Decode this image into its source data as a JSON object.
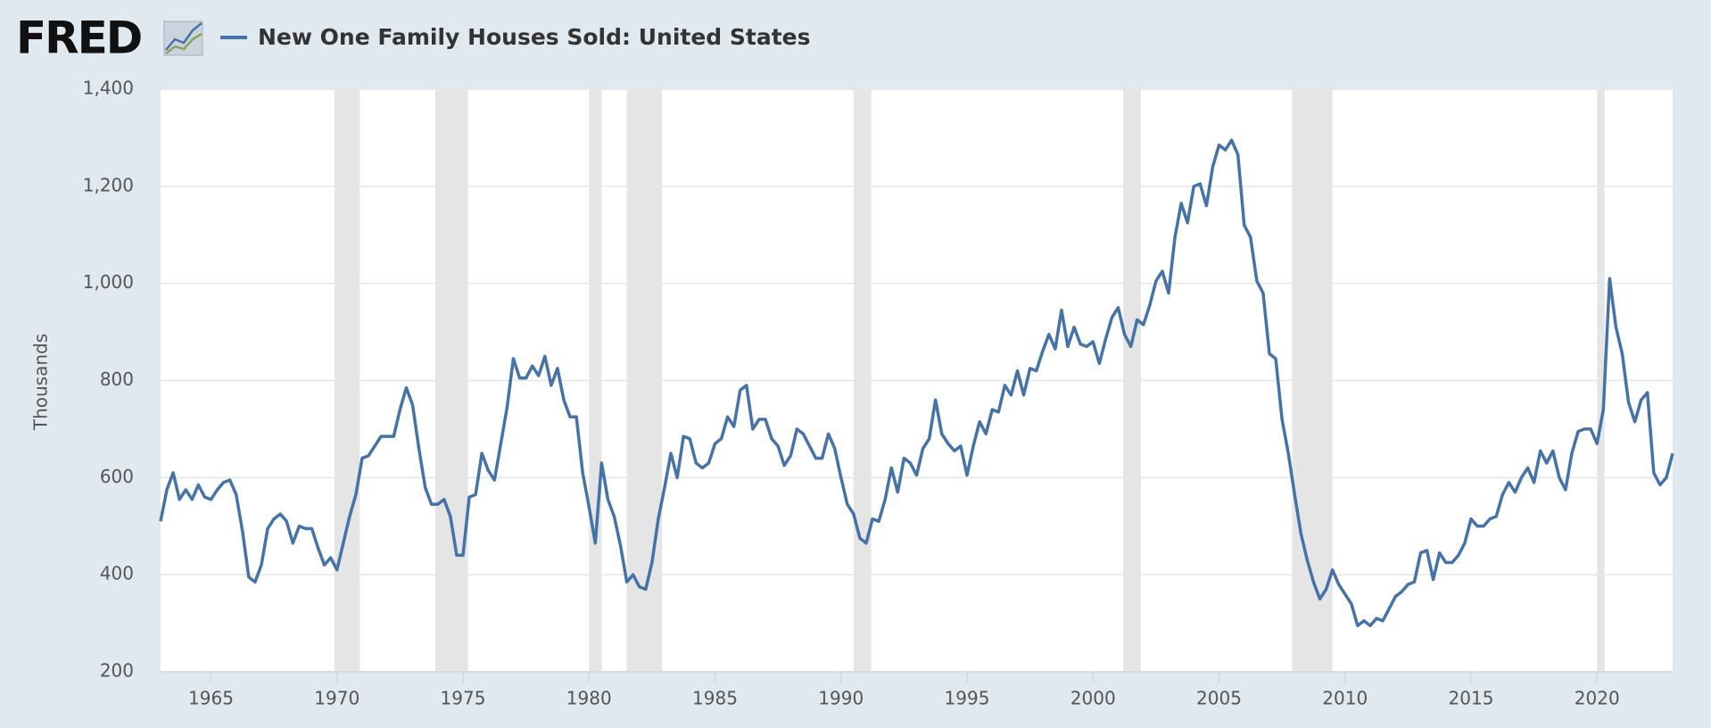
{
  "logo": "FRED",
  "chart_data": {
    "type": "line",
    "title": "New One Family Houses Sold: United States",
    "y_label": "Thousands",
    "xlim": [
      1963,
      2023
    ],
    "xticks": [
      1965,
      1970,
      1975,
      1980,
      1985,
      1990,
      1995,
      2000,
      2005,
      2010,
      2015,
      2020
    ],
    "ylim": [
      200,
      1400
    ],
    "yticks": [
      200,
      400,
      600,
      800,
      {
        "value": 1000,
        "label": "1,000"
      },
      {
        "value": 1200,
        "label": "1,200"
      },
      {
        "value": 1400,
        "label": "1,400"
      }
    ],
    "grid": true,
    "recessions": [
      [
        1969.9,
        1970.9
      ],
      [
        1973.9,
        1975.2
      ],
      [
        1980.0,
        1980.5
      ],
      [
        1981.5,
        1982.9
      ],
      [
        1990.5,
        1991.2
      ],
      [
        2001.2,
        2001.9
      ],
      [
        2007.9,
        2009.5
      ],
      [
        2020.0,
        2020.3
      ]
    ],
    "x": [
      1963,
      1963.25,
      1963.5,
      1963.75,
      1964,
      1964.25,
      1964.5,
      1964.75,
      1965,
      1965.25,
      1965.5,
      1965.75,
      1966,
      1966.25,
      1966.5,
      1966.75,
      1967,
      1967.25,
      1967.5,
      1967.75,
      1968,
      1968.25,
      1968.5,
      1968.75,
      1969,
      1969.25,
      1969.5,
      1969.75,
      1970,
      1970.25,
      1970.5,
      1970.75,
      1971,
      1971.25,
      1971.5,
      1971.75,
      1972,
      1972.25,
      1972.5,
      1972.75,
      1973,
      1973.25,
      1973.5,
      1973.75,
      1974,
      1974.25,
      1974.5,
      1974.75,
      1975,
      1975.25,
      1975.5,
      1975.75,
      1976,
      1976.25,
      1976.5,
      1976.75,
      1977,
      1977.25,
      1977.5,
      1977.75,
      1978,
      1978.25,
      1978.5,
      1978.75,
      1979,
      1979.25,
      1979.5,
      1979.75,
      1980,
      1980.25,
      1980.5,
      1980.75,
      1981,
      1981.25,
      1981.5,
      1981.75,
      1982,
      1982.25,
      1982.5,
      1982.75,
      1983,
      1983.25,
      1983.5,
      1983.75,
      1984,
      1984.25,
      1984.5,
      1984.75,
      1985,
      1985.25,
      1985.5,
      1985.75,
      1986,
      1986.25,
      1986.5,
      1986.75,
      1987,
      1987.25,
      1987.5,
      1987.75,
      1988,
      1988.25,
      1988.5,
      1988.75,
      1989,
      1989.25,
      1989.5,
      1989.75,
      1990,
      1990.25,
      1990.5,
      1990.75,
      1991,
      1991.25,
      1991.5,
      1991.75,
      1992,
      1992.25,
      1992.5,
      1992.75,
      1993,
      1993.25,
      1993.5,
      1993.75,
      1994,
      1994.25,
      1994.5,
      1994.75,
      1995,
      1995.25,
      1995.5,
      1995.75,
      1996,
      1996.25,
      1996.5,
      1996.75,
      1997,
      1997.25,
      1997.5,
      1997.75,
      1998,
      1998.25,
      1998.5,
      1998.75,
      1999,
      1999.25,
      1999.5,
      1999.75,
      2000,
      2000.25,
      2000.5,
      2000.75,
      2001,
      2001.25,
      2001.5,
      2001.75,
      2002,
      2002.25,
      2002.5,
      2002.75,
      2003,
      2003.25,
      2003.5,
      2003.75,
      2004,
      2004.25,
      2004.5,
      2004.75,
      2005,
      2005.25,
      2005.5,
      2005.75,
      2006,
      2006.25,
      2006.5,
      2006.75,
      2007,
      2007.25,
      2007.5,
      2007.75,
      2008,
      2008.25,
      2008.5,
      2008.75,
      2009,
      2009.25,
      2009.5,
      2009.75,
      2010,
      2010.25,
      2010.5,
      2010.75,
      2011,
      2011.25,
      2011.5,
      2011.75,
      2012,
      2012.25,
      2012.5,
      2012.75,
      2013,
      2013.25,
      2013.5,
      2013.75,
      2014,
      2014.25,
      2014.5,
      2014.75,
      2015,
      2015.25,
      2015.5,
      2015.75,
      2016,
      2016.25,
      2016.5,
      2016.75,
      2017,
      2017.25,
      2017.5,
      2017.75,
      2018,
      2018.25,
      2018.5,
      2018.75,
      2019,
      2019.25,
      2019.5,
      2019.75,
      2020,
      2020.25,
      2020.5,
      2020.75,
      2021,
      2021.25,
      2021.5,
      2021.75,
      2022,
      2022.25,
      2022.5,
      2022.75,
      2023
    ],
    "series": [
      {
        "name": "New One Family Houses Sold: United States",
        "color": "#4572a7",
        "values": [
          510,
          575,
          610,
          555,
          575,
          555,
          585,
          560,
          555,
          575,
          590,
          595,
          565,
          490,
          395,
          385,
          420,
          495,
          515,
          525,
          510,
          465,
          500,
          495,
          495,
          455,
          420,
          435,
          410,
          465,
          520,
          565,
          640,
          645,
          665,
          685,
          685,
          685,
          740,
          785,
          750,
          660,
          580,
          545,
          545,
          555,
          520,
          440,
          440,
          560,
          565,
          650,
          615,
          595,
          670,
          745,
          845,
          805,
          805,
          830,
          810,
          850,
          790,
          825,
          760,
          725,
          725,
          610,
          540,
          465,
          630,
          555,
          520,
          460,
          385,
          400,
          375,
          370,
          425,
          515,
          580,
          650,
          600,
          685,
          680,
          630,
          620,
          630,
          670,
          680,
          725,
          705,
          780,
          790,
          700,
          720,
          720,
          680,
          665,
          625,
          645,
          700,
          690,
          665,
          640,
          640,
          690,
          660,
          600,
          545,
          525,
          475,
          465,
          515,
          510,
          555,
          620,
          570,
          640,
          630,
          605,
          660,
          680,
          760,
          690,
          670,
          655,
          665,
          605,
          665,
          715,
          690,
          740,
          735,
          790,
          770,
          820,
          770,
          825,
          820,
          860,
          895,
          865,
          945,
          870,
          910,
          875,
          870,
          880,
          835,
          885,
          930,
          950,
          895,
          870,
          925,
          915,
          955,
          1005,
          1025,
          980,
          1095,
          1165,
          1125,
          1200,
          1205,
          1160,
          1240,
          1285,
          1275,
          1295,
          1265,
          1120,
          1095,
          1005,
          980,
          855,
          845,
          720,
          650,
          565,
          485,
          430,
          385,
          350,
          370,
          410,
          380,
          360,
          340,
          295,
          305,
          295,
          310,
          305,
          330,
          355,
          365,
          380,
          385,
          445,
          450,
          390,
          445,
          425,
          425,
          440,
          465,
          515,
          500,
          500,
          515,
          520,
          565,
          590,
          570,
          600,
          620,
          590,
          655,
          630,
          655,
          600,
          575,
          650,
          695,
          700,
          700,
          670,
          740,
          1010,
          910,
          855,
          755,
          715,
          760,
          775,
          610,
          585,
          600,
          650
        ]
      }
    ]
  }
}
